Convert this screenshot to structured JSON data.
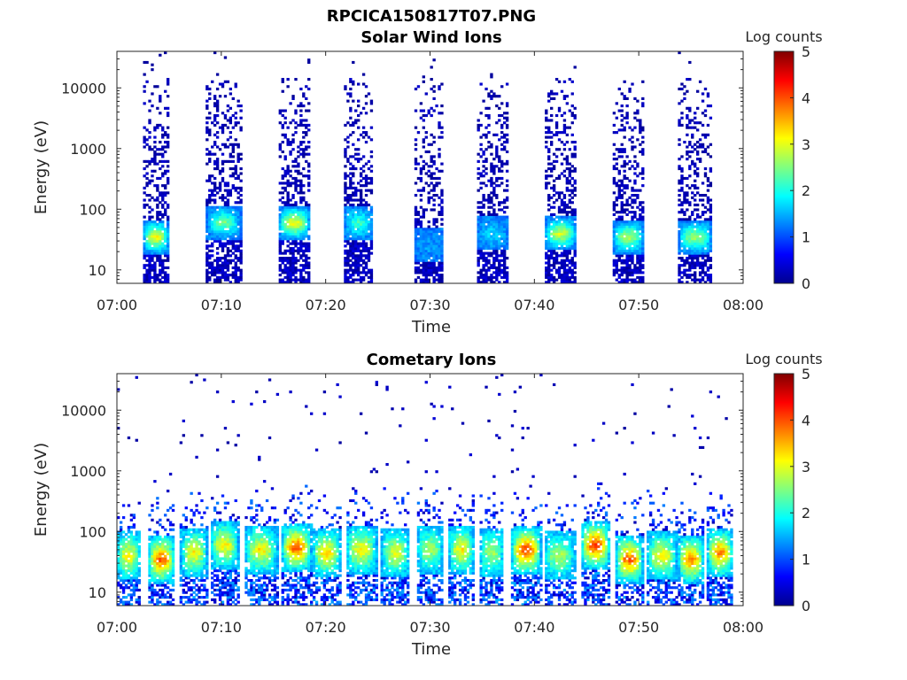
{
  "figure_title": "RPCICA150817T07.PNG",
  "chart_data": [
    {
      "type": "heatmap",
      "title": "Solar Wind Ions",
      "xlabel": "Time",
      "ylabel": "Energy (eV)",
      "x_ticks": [
        "07:00",
        "07:10",
        "07:20",
        "07:30",
        "07:40",
        "07:50",
        "08:00"
      ],
      "x_range": [
        "07:00",
        "08:00"
      ],
      "y_scale": "log",
      "y_ticks": [
        "10",
        "100",
        "1000",
        "10000"
      ],
      "y_range": [
        6,
        40000
      ],
      "colorbar": {
        "label": "Log counts",
        "range": [
          0,
          5
        ],
        "ticks": [
          "0",
          "1",
          "2",
          "3",
          "4",
          "5"
        ],
        "colormap": "jet"
      },
      "bursts": [
        {
          "start_min": 2.5,
          "end_min": 5.0,
          "core_energy_ev": 35,
          "core_log_counts": 3.0,
          "max_energy_ev": 15000
        },
        {
          "start_min": 8.7,
          "end_min": 11.8,
          "core_energy_ev": 60,
          "core_log_counts": 2.3,
          "max_energy_ev": 15000
        },
        {
          "start_min": 15.5,
          "end_min": 18.5,
          "core_energy_ev": 60,
          "core_log_counts": 3.0,
          "max_energy_ev": 15000
        },
        {
          "start_min": 21.8,
          "end_min": 24.5,
          "core_energy_ev": 60,
          "core_log_counts": 2.0,
          "max_energy_ev": 15000
        },
        {
          "start_min": 28.5,
          "end_min": 31.0,
          "core_energy_ev": 25,
          "core_log_counts": 1.2,
          "max_energy_ev": 15000
        },
        {
          "start_min": 34.5,
          "end_min": 37.5,
          "core_energy_ev": 40,
          "core_log_counts": 1.5,
          "max_energy_ev": 15000
        },
        {
          "start_min": 41.0,
          "end_min": 44.0,
          "core_energy_ev": 40,
          "core_log_counts": 2.8,
          "max_energy_ev": 15000
        },
        {
          "start_min": 47.5,
          "end_min": 50.5,
          "core_energy_ev": 35,
          "core_log_counts": 2.6,
          "max_energy_ev": 15000
        },
        {
          "start_min": 53.8,
          "end_min": 57.0,
          "core_energy_ev": 35,
          "core_log_counts": 2.5,
          "max_energy_ev": 15000
        }
      ]
    },
    {
      "type": "heatmap",
      "title": "Cometary Ions",
      "xlabel": "Time",
      "ylabel": "Energy (eV)",
      "x_ticks": [
        "07:00",
        "07:10",
        "07:20",
        "07:30",
        "07:40",
        "07:50",
        "08:00"
      ],
      "x_range": [
        "07:00",
        "08:00"
      ],
      "y_scale": "log",
      "y_ticks": [
        "10",
        "100",
        "1000",
        "10000"
      ],
      "y_range": [
        6,
        40000
      ],
      "colorbar": {
        "label": "Log counts",
        "range": [
          0,
          5
        ],
        "ticks": [
          "0",
          "1",
          "2",
          "3",
          "4",
          "5"
        ],
        "colormap": "jet"
      },
      "bursts": [
        {
          "start_min": 0.0,
          "end_min": 2.2,
          "core_energy_ev": 40,
          "core_log_counts": 3.0
        },
        {
          "start_min": 3.0,
          "end_min": 5.5,
          "core_energy_ev": 35,
          "core_log_counts": 3.8
        },
        {
          "start_min": 6.2,
          "end_min": 8.6,
          "core_energy_ev": 45,
          "core_log_counts": 3.0
        },
        {
          "start_min": 9.0,
          "end_min": 11.6,
          "core_energy_ev": 60,
          "core_log_counts": 3.0
        },
        {
          "start_min": 12.3,
          "end_min": 15.3,
          "core_energy_ev": 50,
          "core_log_counts": 3.0
        },
        {
          "start_min": 15.8,
          "end_min": 18.6,
          "core_energy_ev": 55,
          "core_log_counts": 3.8
        },
        {
          "start_min": 18.8,
          "end_min": 21.4,
          "core_energy_ev": 45,
          "core_log_counts": 3.2
        },
        {
          "start_min": 22.0,
          "end_min": 24.8,
          "core_energy_ev": 50,
          "core_log_counts": 3.0
        },
        {
          "start_min": 25.4,
          "end_min": 28.0,
          "core_energy_ev": 45,
          "core_log_counts": 2.8
        },
        {
          "start_min": 28.8,
          "end_min": 31.2,
          "core_energy_ev": 50,
          "core_log_counts": 2.5
        },
        {
          "start_min": 31.8,
          "end_min": 34.2,
          "core_energy_ev": 50,
          "core_log_counts": 3.0
        },
        {
          "start_min": 34.8,
          "end_min": 37.0,
          "core_energy_ev": 45,
          "core_log_counts": 2.5
        },
        {
          "start_min": 37.8,
          "end_min": 40.6,
          "core_energy_ev": 50,
          "core_log_counts": 4.0
        },
        {
          "start_min": 41.0,
          "end_min": 43.8,
          "core_energy_ev": 40,
          "core_log_counts": 2.5
        },
        {
          "start_min": 44.5,
          "end_min": 47.2,
          "core_energy_ev": 60,
          "core_log_counts": 4.0
        },
        {
          "start_min": 47.8,
          "end_min": 50.4,
          "core_energy_ev": 35,
          "core_log_counts": 3.8
        },
        {
          "start_min": 50.8,
          "end_min": 53.6,
          "core_energy_ev": 40,
          "core_log_counts": 3.0
        },
        {
          "start_min": 53.8,
          "end_min": 56.2,
          "core_energy_ev": 35,
          "core_log_counts": 3.6
        },
        {
          "start_min": 56.6,
          "end_min": 59.0,
          "core_energy_ev": 45,
          "core_log_counts": 3.6
        }
      ]
    }
  ]
}
